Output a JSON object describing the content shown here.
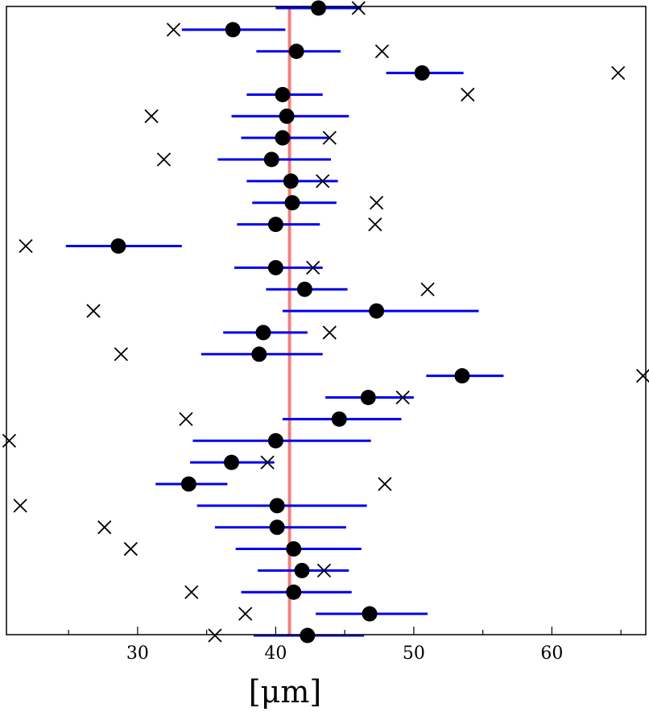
{
  "chart_data": {
    "type": "scatter",
    "title": "",
    "xlabel": "[μm]",
    "ylabel": "",
    "xlim": [
      20.5,
      66.8
    ],
    "x_ticks": [
      30,
      40,
      50,
      60
    ],
    "x_tick_labels": [
      "30",
      "40",
      "50",
      "60"
    ],
    "grid": false,
    "legend": "none",
    "colors": {
      "reference_line": "#f08080",
      "interval": "#0000ee",
      "estimate": "#000000",
      "cross": "#000000"
    },
    "reference_value": 41.0,
    "rows": [
      {
        "estimate": 43.1,
        "low": 40.0,
        "high": 46.2,
        "cross": 46.0
      },
      {
        "estimate": 36.9,
        "low": 33.2,
        "high": 40.7,
        "cross": 32.6
      },
      {
        "estimate": 41.5,
        "low": 38.6,
        "high": 44.7,
        "cross": 47.7
      },
      {
        "estimate": 50.6,
        "low": 48.0,
        "high": 53.6,
        "cross": 64.8
      },
      {
        "estimate": 40.5,
        "low": 37.9,
        "high": 43.4,
        "cross": 53.9
      },
      {
        "estimate": 40.8,
        "low": 36.8,
        "high": 45.3,
        "cross": 31.0
      },
      {
        "estimate": 40.5,
        "low": 37.5,
        "high": 43.9,
        "cross": 43.9
      },
      {
        "estimate": 39.7,
        "low": 35.8,
        "high": 44.0,
        "cross": 31.9
      },
      {
        "estimate": 41.1,
        "low": 37.9,
        "high": 44.5,
        "cross": 43.4
      },
      {
        "estimate": 41.2,
        "low": 38.3,
        "high": 44.4,
        "cross": 47.3
      },
      {
        "estimate": 40.0,
        "low": 37.2,
        "high": 43.2,
        "cross": 47.2
      },
      {
        "estimate": 28.6,
        "low": 24.8,
        "high": 33.2,
        "cross": 21.9
      },
      {
        "estimate": 40.0,
        "low": 37.0,
        "high": 43.4,
        "cross": 42.7
      },
      {
        "estimate": 42.1,
        "low": 39.3,
        "high": 45.2,
        "cross": 51.0
      },
      {
        "estimate": 47.3,
        "low": 40.5,
        "high": 54.7,
        "cross": 26.8
      },
      {
        "estimate": 39.1,
        "low": 36.2,
        "high": 42.3,
        "cross": 43.9
      },
      {
        "estimate": 38.8,
        "low": 34.6,
        "high": 43.4,
        "cross": 28.8
      },
      {
        "estimate": 53.5,
        "low": 50.9,
        "high": 56.5,
        "cross": 66.6
      },
      {
        "estimate": 46.7,
        "low": 43.6,
        "high": 50.0,
        "cross": 49.2
      },
      {
        "estimate": 44.6,
        "low": 40.5,
        "high": 49.1,
        "cross": 33.5
      },
      {
        "estimate": 40.0,
        "low": 34.0,
        "high": 46.9,
        "cross": 20.7
      },
      {
        "estimate": 36.8,
        "low": 33.8,
        "high": 39.9,
        "cross": 39.4
      },
      {
        "estimate": 33.7,
        "low": 31.3,
        "high": 36.5,
        "cross": 47.9
      },
      {
        "estimate": 40.1,
        "low": 34.3,
        "high": 46.6,
        "cross": 21.5
      },
      {
        "estimate": 40.1,
        "low": 35.6,
        "high": 45.1,
        "cross": 27.6
      },
      {
        "estimate": 41.3,
        "low": 37.1,
        "high": 46.2,
        "cross": 29.5
      },
      {
        "estimate": 41.9,
        "low": 38.7,
        "high": 45.3,
        "cross": 43.5
      },
      {
        "estimate": 41.3,
        "low": 37.5,
        "high": 45.5,
        "cross": 33.9
      },
      {
        "estimate": 46.8,
        "low": 42.9,
        "high": 51.0,
        "cross": 37.8
      },
      {
        "estimate": 42.3,
        "low": 38.4,
        "high": 46.4,
        "cross": 35.6
      }
    ]
  }
}
